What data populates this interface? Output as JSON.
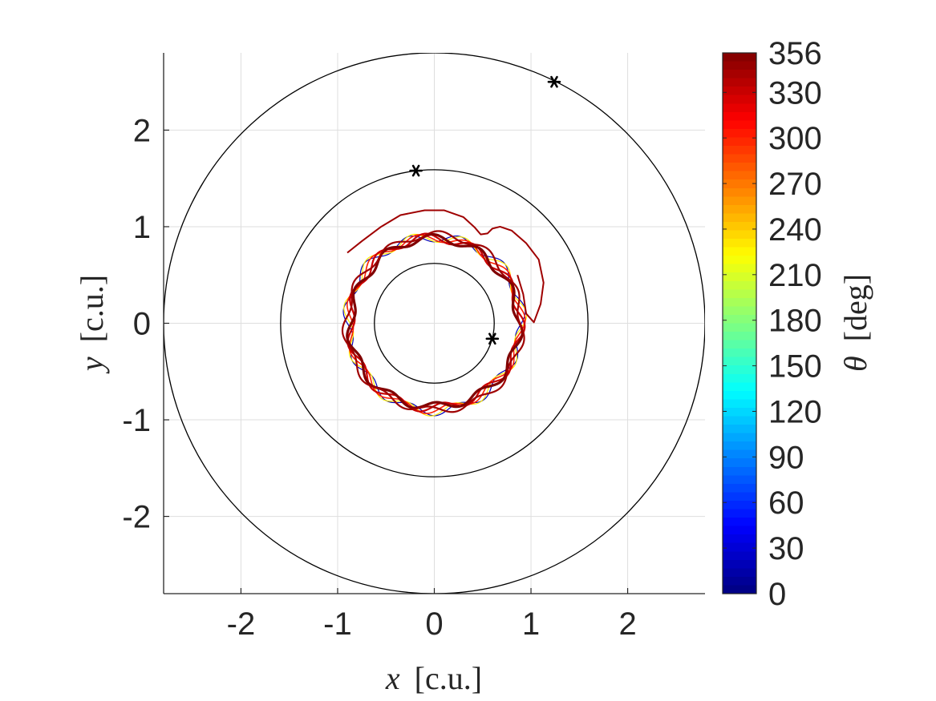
{
  "chart_data": {
    "type": "line",
    "title": "",
    "xlabel": {
      "var": "x",
      "unit": "[c.u.]"
    },
    "ylabel": {
      "var": "y",
      "unit": "[c.u.]"
    },
    "xlim": [
      -2.8,
      2.8
    ],
    "ylim": [
      -2.8,
      2.8
    ],
    "xticks": [
      -2,
      -1,
      0,
      1,
      2
    ],
    "yticks": [
      -2,
      -1,
      0,
      1,
      2
    ],
    "grid": true,
    "colorbar": {
      "label": {
        "var": "θ",
        "unit": "[deg]"
      },
      "range": [
        0,
        356
      ],
      "ticks": [
        0,
        30,
        60,
        90,
        120,
        150,
        180,
        210,
        240,
        270,
        300,
        330,
        356
      ],
      "colormap": "jet"
    },
    "reference_circles": [
      {
        "radius": 0.62
      },
      {
        "radius": 1.59
      },
      {
        "radius": 2.8
      }
    ],
    "markers": [
      {
        "x": 0.6,
        "y": -0.16,
        "symbol": "*"
      },
      {
        "x": -0.19,
        "y": 1.58,
        "symbol": "*"
      },
      {
        "x": 1.24,
        "y": 2.5,
        "symbol": "*"
      }
    ],
    "trajectories": [
      {
        "theta": 20,
        "radius": 0.9,
        "lobes": 11,
        "amplitude": 0.045,
        "phase": 0.0,
        "width": 1.2
      },
      {
        "theta": 230,
        "radius": 0.9,
        "lobes": 11,
        "amplitude": 0.05,
        "phase": 0.5,
        "width": 1.2
      },
      {
        "theta": 300,
        "radius": 0.89,
        "lobes": 11,
        "amplitude": 0.04,
        "phase": 1.1,
        "width": 1.6
      },
      {
        "theta": 330,
        "radius": 0.88,
        "lobes": 11,
        "amplitude": 0.045,
        "phase": 2.0,
        "width": 2.2
      },
      {
        "theta": 356,
        "radius": 0.87,
        "lobes": 11,
        "amplitude": 0.04,
        "phase": 2.9,
        "width": 3.2
      },
      {
        "theta": 345,
        "radius": 0.91,
        "lobes": 11,
        "amplitude": 0.035,
        "phase": 3.7,
        "width": 2.2
      }
    ],
    "excursion": {
      "theta": 345,
      "points": [
        [
          -0.9,
          0.73
        ],
        [
          -0.75,
          0.85
        ],
        [
          -0.55,
          1.0
        ],
        [
          -0.35,
          1.12
        ],
        [
          -0.1,
          1.17
        ],
        [
          0.1,
          1.17
        ],
        [
          0.3,
          1.1
        ],
        [
          0.42,
          0.99
        ],
        [
          0.48,
          0.92
        ],
        [
          0.55,
          0.93
        ],
        [
          0.6,
          0.98
        ],
        [
          0.68,
          1.0
        ],
        [
          0.8,
          0.96
        ],
        [
          0.95,
          0.83
        ],
        [
          1.08,
          0.66
        ],
        [
          1.13,
          0.42
        ],
        [
          1.1,
          0.2
        ],
        [
          1.03,
          0.01
        ],
        [
          0.95,
          0.1
        ],
        [
          0.92,
          0.3
        ],
        [
          0.86,
          0.5
        ]
      ]
    }
  }
}
